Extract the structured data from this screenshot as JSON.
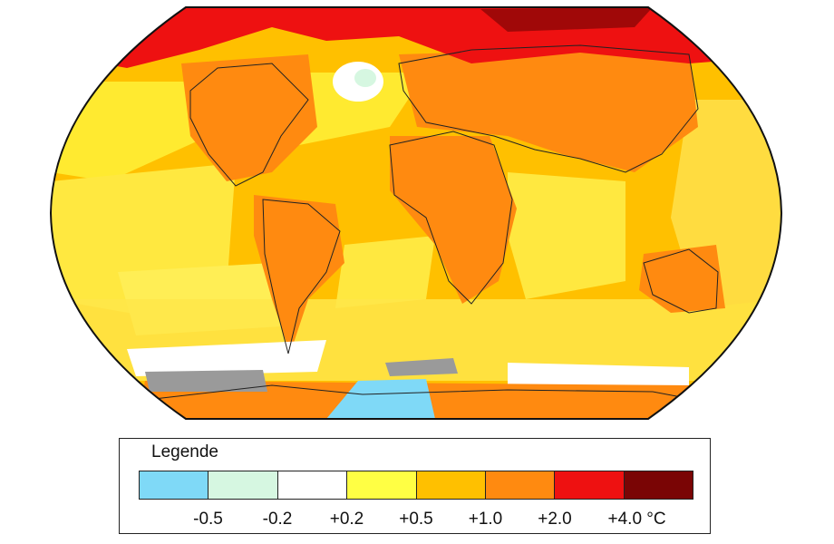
{
  "legend": {
    "title": "Legende",
    "bins": [
      {
        "color": "#7fd9f7"
      },
      {
        "color": "#d6f7e1"
      },
      {
        "color": "#ffffff"
      },
      {
        "color": "#ffff44"
      },
      {
        "color": "#ffc000"
      },
      {
        "color": "#ff8a10"
      },
      {
        "color": "#ee1111"
      },
      {
        "color": "#7a0505"
      }
    ],
    "ticks": [
      "-0.5",
      "-0.2",
      "+0.2",
      "+0.5",
      "+1.0",
      "+2.0",
      "+4.0 °C"
    ]
  }
}
